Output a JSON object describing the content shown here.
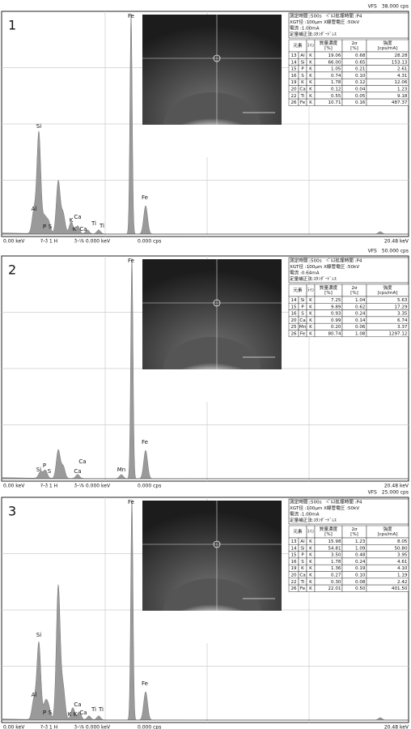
{
  "panels": [
    {
      "number": "1",
      "vfs": "VFS　38.000 cps",
      "table": {
        "info": [
          "測定時間 :500s　ﾍﾟﾙｽ処理時間 :P4",
          "XGT径 :100μm X線管電圧 :50kV",
          "電流 :1.00mA",
          "定量補正法:ｽﾀﾝﾀﾞｰﾄﾞﾚｽ"
        ],
        "header": [
          [
            "元素"
          ],
          [
            "ﾗｲﾝ"
          ],
          [
            "質量濃度",
            "[%]"
          ],
          [
            "2σ",
            "[%]"
          ],
          [
            "強度",
            "[cps/mA]"
          ]
        ],
        "rows": [
          [
            "13",
            "Al",
            "K",
            "19.06",
            "0.68",
            "28.28"
          ],
          [
            "14",
            "Si",
            "K",
            "66.00",
            "0.65",
            "153.13"
          ],
          [
            "15",
            "P",
            "K",
            "1.05",
            "0.21",
            "2.61"
          ],
          [
            "16",
            "S",
            "K",
            "0.74",
            "0.10",
            "4.31"
          ],
          [
            "19",
            "K",
            "K",
            "1.78",
            "0.12",
            "12.06"
          ],
          [
            "20",
            "Ca",
            "K",
            "0.12",
            "0.04",
            "1.23"
          ],
          [
            "22",
            "Ti",
            "K",
            "0.55",
            "0.05",
            "9.18"
          ],
          [
            "26",
            "Fe",
            "K",
            "10.71",
            "0.16",
            "487.37"
          ]
        ]
      },
      "peak_labels": [
        "Si",
        "Al",
        "P",
        "S",
        "K",
        "Ca",
        "K",
        "Ca",
        "Ti",
        "Ti",
        "Fe",
        "Fe"
      ],
      "footer": [
        "0.00 keV",
        "ﾏｰｶ 1 H",
        "ｶｰｿﾙ 0.000 keV",
        "0.000 cps",
        "20.48 keV"
      ]
    },
    {
      "number": "2",
      "vfs": "VFS　50.000 cps",
      "table": {
        "info": [
          "測定時間 :500s　ﾍﾟﾙｽ処理時間 :P4",
          "XGT径 :100μm X線管電圧 :50kV",
          "電流 :0.64mA",
          "定量補正法:ｽﾀﾝﾀﾞｰﾄﾞﾚｽ"
        ],
        "header": [
          [
            "元素"
          ],
          [
            "ﾗｲﾝ"
          ],
          [
            "質量濃度",
            "[%]"
          ],
          [
            "2σ",
            "[%]"
          ],
          [
            "強度",
            "[cps/mA]"
          ]
        ],
        "rows": [
          [
            "14",
            "Si",
            "K",
            "7.25",
            "1.04",
            "5.63"
          ],
          [
            "15",
            "P",
            "K",
            "9.89",
            "0.62",
            "17.29"
          ],
          [
            "16",
            "S",
            "K",
            "0.93",
            "0.24",
            "3.35"
          ],
          [
            "20",
            "Ca",
            "K",
            "0.99",
            "0.14",
            "6.74"
          ],
          [
            "25",
            "Mn",
            "K",
            "0.20",
            "0.06",
            "3.37"
          ],
          [
            "26",
            "Fe",
            "K",
            "80.74",
            "1.08",
            "1297.12"
          ]
        ]
      },
      "peak_labels": [
        "Fe",
        "Fe",
        "Si",
        "P",
        "S",
        "Ca",
        "Ca",
        "Mn"
      ],
      "footer": [
        "0.00 keV",
        "ﾏｰｶ 1 H",
        "ｶｰｿﾙ 0.000 keV",
        "0.000 cps",
        "20.48 keV"
      ]
    },
    {
      "number": "3",
      "vfs": "VFS　25.000 cps",
      "table": {
        "info": [
          "測定時間 :500s　ﾍﾟﾙｽ処理時間 :P4",
          "XGT径 :100μm X線管電圧 :50kV",
          "電流 :1.00mA",
          "定量補正法:ｽﾀﾝﾀﾞｰﾄﾞﾚｽ"
        ],
        "header": [
          [
            "元素"
          ],
          [
            "ﾗｲﾝ"
          ],
          [
            "質量濃度",
            "[%]"
          ],
          [
            "2σ",
            "[%]"
          ],
          [
            "強度",
            "[cps/mA]"
          ]
        ],
        "rows": [
          [
            "13",
            "Al",
            "K",
            "15.98",
            "1.23",
            "8.05"
          ],
          [
            "14",
            "Si",
            "K",
            "54.81",
            "1.09",
            "50.80"
          ],
          [
            "15",
            "P",
            "K",
            "3.50",
            "0.48",
            "3.95"
          ],
          [
            "16",
            "S",
            "K",
            "1.78",
            "0.24",
            "4.61"
          ],
          [
            "19",
            "K",
            "K",
            "1.36",
            "0.19",
            "4.10"
          ],
          [
            "20",
            "Ca",
            "K",
            "0.27",
            "0.10",
            "1.19"
          ],
          [
            "22",
            "Ti",
            "K",
            "0.30",
            "0.08",
            "2.42"
          ],
          [
            "26",
            "Fe",
            "K",
            "22.01",
            "0.50",
            "401.50"
          ]
        ]
      },
      "peak_labels": [
        "Fe",
        "Si",
        "Al",
        "P",
        "S",
        "K",
        "K",
        "Ca",
        "Ca",
        "Ti",
        "Ti",
        "Fe"
      ],
      "footer": [
        "0.00 keV",
        "ﾏｰｶ 1 H",
        "ｶｰｿﾙ 0.000 keV",
        "0.000 cps",
        "20.48 keV"
      ]
    }
  ]
}
